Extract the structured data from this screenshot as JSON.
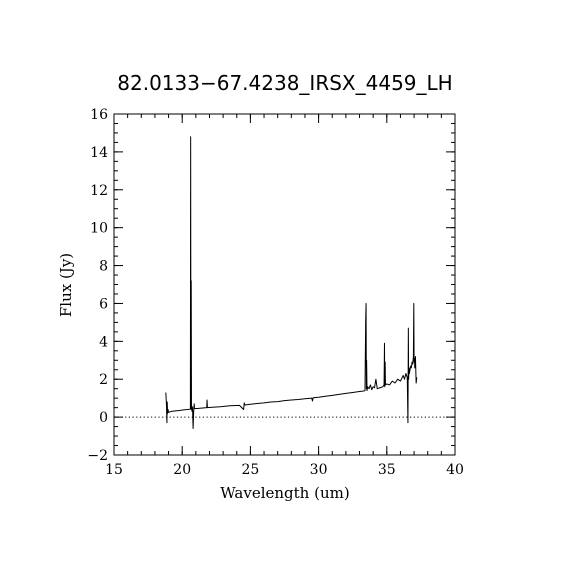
{
  "chart_data": {
    "type": "line",
    "title": "82.0133−67.4238_IRSX_4459_LH",
    "xlabel": "Wavelength (um)",
    "ylabel": "Flux (Jy)",
    "xlim": [
      15,
      40
    ],
    "ylim": [
      -2,
      16
    ],
    "x_ticks": [
      15,
      20,
      25,
      30,
      35,
      40
    ],
    "y_ticks": [
      -2,
      0,
      2,
      4,
      6,
      8,
      10,
      12,
      14,
      16
    ],
    "x_tick_labels": [
      "15",
      "20",
      "25",
      "30",
      "35",
      "40"
    ],
    "y_tick_labels": [
      "−2",
      "0",
      "2",
      "4",
      "6",
      "8",
      "10",
      "12",
      "14",
      "16"
    ],
    "x_minor_step": 1,
    "y_minor_step": 0.5,
    "reference_line": {
      "y": 0,
      "style": "dotted"
    },
    "grid": false,
    "series": [
      {
        "x": [
          18.8,
          18.85,
          18.88,
          18.9,
          18.93,
          18.96,
          19.0,
          19.2,
          19.5,
          19.8,
          20.1,
          20.4,
          20.6,
          20.62,
          20.64,
          20.66,
          20.68,
          20.7,
          20.72,
          20.74,
          20.76,
          20.8,
          20.85,
          20.88,
          20.9,
          21.2,
          21.5,
          21.8,
          21.82,
          21.85,
          22.2,
          22.8,
          23.5,
          24.2,
          24.5,
          24.55,
          24.6,
          25.0,
          25.5,
          26.0,
          26.5,
          27.0,
          27.5,
          28.0,
          28.5,
          29.0,
          29.5,
          29.55,
          29.6,
          30.0,
          30.5,
          31.0,
          31.5,
          32.0,
          32.5,
          33.0,
          33.3,
          33.4,
          33.45,
          33.48,
          33.5,
          33.52,
          33.55,
          33.6,
          33.7,
          33.8,
          33.9,
          34.0,
          34.1,
          34.2,
          34.3,
          34.5,
          34.7,
          34.8,
          34.83,
          34.85,
          34.88,
          34.9,
          35.0,
          35.2,
          35.4,
          35.6,
          35.8,
          36.0,
          36.2,
          36.3,
          36.4,
          36.5,
          36.55,
          36.58,
          36.6,
          36.63,
          36.66,
          36.7,
          36.75,
          36.8,
          36.85,
          36.9,
          36.95,
          36.98,
          37.0,
          37.03,
          37.05,
          37.1,
          37.15,
          37.2
        ],
        "y": [
          1.3,
          0.6,
          -0.3,
          0.8,
          0.2,
          0.4,
          0.25,
          0.3,
          0.33,
          0.35,
          0.38,
          0.4,
          0.42,
          14.8,
          0.45,
          7.2,
          0.4,
          0.5,
          0.3,
          0.55,
          0.42,
          -0.6,
          0.45,
          0.7,
          0.45,
          0.46,
          0.48,
          0.5,
          0.9,
          0.5,
          0.52,
          0.55,
          0.6,
          0.62,
          0.4,
          0.75,
          0.64,
          0.68,
          0.72,
          0.75,
          0.8,
          0.82,
          0.87,
          0.9,
          0.93,
          0.97,
          1.0,
          0.85,
          1.02,
          1.05,
          1.1,
          1.15,
          1.2,
          1.25,
          1.3,
          1.35,
          1.38,
          1.4,
          5.0,
          6.0,
          1.5,
          3.0,
          1.4,
          1.6,
          1.5,
          1.7,
          1.45,
          1.6,
          1.55,
          2.0,
          1.5,
          1.55,
          1.6,
          1.7,
          3.9,
          1.6,
          2.9,
          1.7,
          1.75,
          1.7,
          1.9,
          1.8,
          2.0,
          1.9,
          2.2,
          2.0,
          2.3,
          2.1,
          -0.3,
          4.7,
          2.0,
          2.6,
          2.3,
          2.5,
          2.7,
          2.6,
          2.9,
          2.8,
          3.2,
          6.0,
          2.9,
          3.1,
          2.6,
          3.2,
          1.8,
          2.1
        ]
      }
    ]
  }
}
